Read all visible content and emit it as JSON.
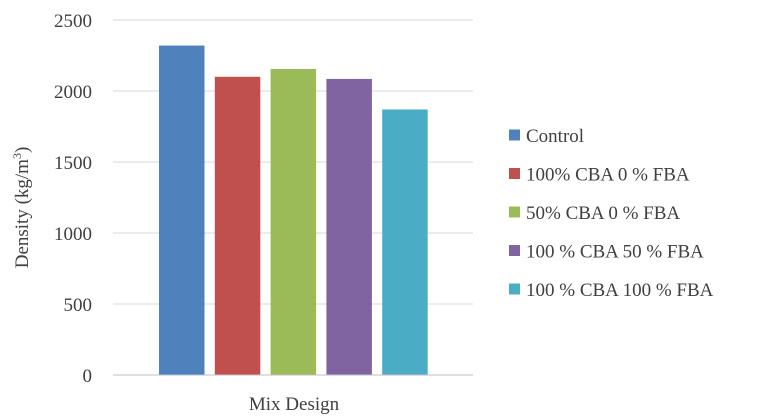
{
  "chart_data": {
    "type": "bar",
    "categories": [
      "Mix Design"
    ],
    "series": [
      {
        "name": "Control",
        "values": [
          2320
        ],
        "color": "#4F81BD"
      },
      {
        "name": "100% CBA 0 % FBA",
        "values": [
          2100
        ],
        "color": "#C0504D"
      },
      {
        "name": "50% CBA 0 % FBA",
        "values": [
          2155
        ],
        "color": "#9BBB59"
      },
      {
        "name": "100 % CBA 50 % FBA",
        "values": [
          2085
        ],
        "color": "#8064A2"
      },
      {
        "name": "100 % CBA 100 % FBA",
        "values": [
          1870
        ],
        "color": "#4BACC6"
      }
    ],
    "xlabel": "Mix Design",
    "ylabel_main": "Density (kg/m",
    "ylabel_sup": "3",
    "ylabel_close": ")",
    "ylim": [
      0,
      2500
    ],
    "yticks": [
      "0",
      "500",
      "1000",
      "1500",
      "2000",
      "2500"
    ],
    "grid": true,
    "legend_position": "right"
  }
}
